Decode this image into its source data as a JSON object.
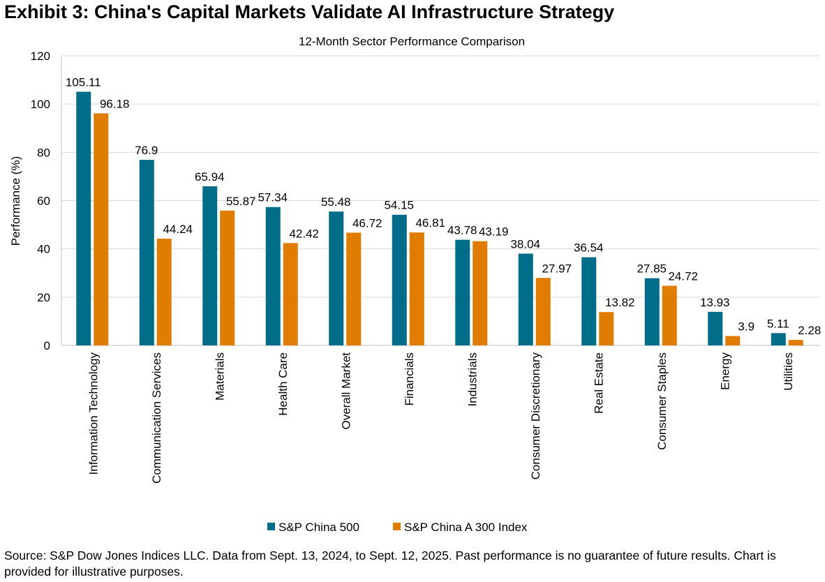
{
  "title": "Exhibit 3: China's Capital Markets Validate AI Infrastructure Strategy",
  "source": "Source: S&P Dow Jones Indices LLC. Data from Sept. 13, 2024, to Sept. 12, 2025. Past performance is no guarantee of future results. Chart is provided for illustrative purposes.",
  "chart_data": {
    "type": "bar",
    "title": "12-Month Sector Performance Comparison",
    "xlabel": "",
    "ylabel": "Performance (%)",
    "ylim": [
      0,
      120
    ],
    "yticks": [
      0,
      20,
      40,
      60,
      80,
      100,
      120
    ],
    "grid": true,
    "legend_position": "bottom",
    "categories": [
      "Information Technology",
      "Communication Services",
      "Materials",
      "Health Care",
      "Overall Market",
      "Financials",
      "Industrials",
      "Consumer Discretionary",
      "Real Estate",
      "Consumer Staples",
      "Energy",
      "Utilities"
    ],
    "series": [
      {
        "name": "S&P China 500",
        "color": "#006D89",
        "values": [
          105.11,
          76.9,
          65.94,
          57.34,
          55.48,
          54.15,
          43.78,
          38.04,
          36.54,
          27.85,
          13.93,
          5.11
        ]
      },
      {
        "name": "S&P China A 300 Index",
        "color": "#E07C00",
        "values": [
          96.18,
          44.24,
          55.87,
          42.42,
          46.72,
          46.81,
          43.19,
          27.97,
          13.82,
          24.72,
          3.9,
          2.28
        ]
      }
    ]
  }
}
